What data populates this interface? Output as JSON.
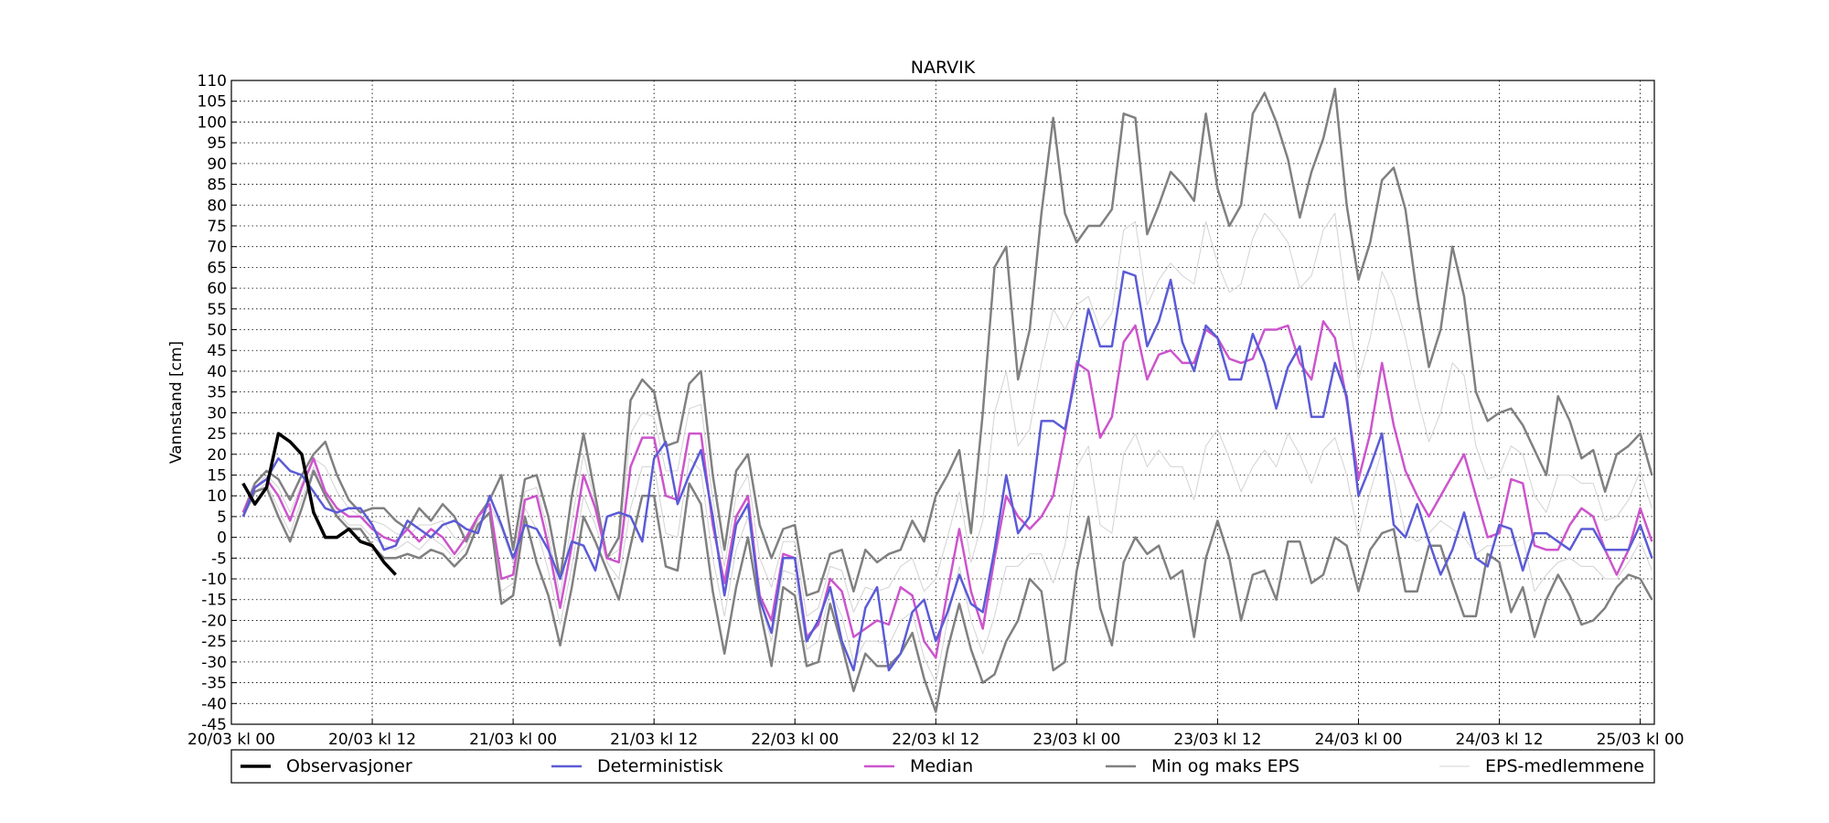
{
  "chart_data": {
    "type": "line",
    "title": "NARVIK",
    "y_label": "Vannstand [cm]",
    "grid": true,
    "xlim": [
      0,
      121.2
    ],
    "ylim": [
      -45,
      110
    ],
    "xticks": [
      {
        "value": 0,
        "label": "20/03 kl 00"
      },
      {
        "value": 12,
        "label": "20/03 kl 12"
      },
      {
        "value": 24,
        "label": "21/03 kl 00"
      },
      {
        "value": 36,
        "label": "21/03 kl 12"
      },
      {
        "value": 48,
        "label": "22/03 kl 00"
      },
      {
        "value": 60,
        "label": "22/03 kl 12"
      },
      {
        "value": 72,
        "label": "23/03 kl 00"
      },
      {
        "value": 84,
        "label": "23/03 kl 12"
      },
      {
        "value": 96,
        "label": "24/03 kl 00"
      },
      {
        "value": 108,
        "label": "24/03 kl 12"
      },
      {
        "value": 120,
        "label": "25/03 kl 00"
      }
    ],
    "yticks": [
      -45,
      -40,
      -35,
      -30,
      -25,
      -20,
      -15,
      -10,
      -5,
      0,
      5,
      10,
      15,
      20,
      25,
      30,
      35,
      40,
      45,
      50,
      55,
      60,
      65,
      70,
      75,
      80,
      85,
      90,
      95,
      100,
      105,
      110
    ],
    "x": [
      1,
      2,
      3,
      4,
      5,
      6,
      7,
      8,
      9,
      10,
      11,
      12,
      13,
      14,
      15,
      16,
      17,
      18,
      19,
      20,
      21,
      22,
      23,
      24,
      25,
      26,
      27,
      28,
      29,
      30,
      31,
      32,
      33,
      34,
      35,
      36,
      37,
      38,
      39,
      40,
      41,
      42,
      43,
      44,
      45,
      46,
      47,
      48,
      49,
      50,
      51,
      52,
      53,
      54,
      55,
      56,
      57,
      58,
      59,
      60,
      61,
      62,
      63,
      64,
      65,
      66,
      67,
      68,
      69,
      70,
      71,
      72,
      73,
      74,
      75,
      76,
      77,
      78,
      79,
      80,
      81,
      82,
      83,
      84,
      85,
      86,
      87,
      88,
      89,
      90,
      91,
      92,
      93,
      94,
      95,
      96,
      97,
      98,
      99,
      100,
      101,
      102,
      103,
      104,
      105,
      106,
      107,
      108,
      109,
      110,
      111,
      112,
      113,
      114,
      115,
      116,
      117,
      118,
      119,
      120,
      121
    ],
    "series": [
      {
        "name": "Observasjoner",
        "color": "#000000",
        "x": [
          1,
          2,
          3,
          4,
          5,
          6,
          7,
          8,
          9,
          10,
          11,
          12,
          13,
          14
        ],
        "values": [
          13,
          8,
          12,
          25,
          23,
          20,
          6,
          0,
          0,
          2,
          -1,
          -2,
          -6,
          -9
        ]
      },
      {
        "name": "Deterministisk",
        "color": "#5b5bd6",
        "values": [
          5,
          12,
          14,
          19,
          16,
          15,
          11,
          7,
          6,
          7,
          7,
          3,
          -3,
          -2,
          4,
          2,
          0,
          3,
          4,
          2,
          1,
          10,
          3,
          -5,
          3,
          2,
          -3,
          -10,
          -1,
          -2,
          -8,
          5,
          6,
          5,
          -1,
          19,
          23,
          8,
          15,
          21,
          5,
          -14,
          3,
          8,
          -15,
          -23,
          -5,
          -5,
          -25,
          -20,
          -12,
          -25,
          -32,
          -17,
          -12,
          -32,
          -28,
          -18,
          -15,
          -25,
          -18,
          -9,
          -16,
          -18,
          -3,
          15,
          1,
          5,
          28,
          28,
          26,
          40,
          55,
          46,
          46,
          64,
          63,
          46,
          52,
          62,
          47,
          40,
          51,
          48,
          38,
          38,
          49,
          42,
          31,
          41,
          46,
          29,
          29,
          42,
          34,
          10,
          17,
          25,
          3,
          0,
          8,
          -1,
          -9,
          -3,
          6,
          -5,
          -7,
          3,
          2,
          -8,
          1,
          1,
          -1,
          -3,
          2,
          2,
          -3,
          -3,
          -3,
          3,
          -5
        ]
      },
      {
        "name": "Median",
        "color": "#cc55cc",
        "values": [
          6,
          12,
          14,
          10,
          4,
          12,
          19,
          11,
          7,
          5,
          5,
          2,
          0,
          -1,
          2,
          -1,
          2,
          0,
          -4,
          0,
          5,
          8,
          -10,
          -9,
          9,
          10,
          -2,
          -17,
          -2,
          15,
          7,
          -5,
          -6,
          17,
          24,
          24,
          10,
          9,
          25,
          25,
          3,
          -11,
          5,
          10,
          -14,
          -20,
          -4,
          -5,
          -24,
          -21,
          -10,
          -13,
          -24,
          -22,
          -20,
          -21,
          -12,
          -14,
          -25,
          -29,
          -13,
          2,
          -13,
          -22,
          -5,
          10,
          5,
          2,
          5,
          10,
          25,
          42,
          40,
          24,
          29,
          47,
          51,
          38,
          44,
          45,
          42,
          42,
          50,
          48,
          43,
          42,
          43,
          50,
          50,
          51,
          42,
          38,
          52,
          48,
          33,
          14,
          25,
          42,
          27,
          16,
          10,
          5,
          10,
          15,
          20,
          10,
          0,
          1,
          14,
          13,
          -2,
          -3,
          -3,
          3,
          7,
          5,
          -3,
          -9,
          -3,
          7,
          -1
        ]
      },
      {
        "name": "Min og maks EPS",
        "color": "#808080",
        "min": [
          5,
          11,
          12,
          5,
          -1,
          7,
          16,
          10,
          5,
          2,
          2,
          -2,
          -5,
          -5,
          -4,
          -5,
          -3,
          -4,
          -7,
          -4,
          3,
          6,
          -16,
          -14,
          5,
          -6,
          -14,
          -26,
          -12,
          5,
          -1,
          -8,
          -15,
          -2,
          10,
          10,
          -7,
          -8,
          13,
          8,
          -13,
          -28,
          -12,
          0,
          -17,
          -31,
          -12,
          -14,
          -31,
          -30,
          -16,
          -26,
          -37,
          -28,
          -31,
          -31,
          -28,
          -23,
          -34,
          -42,
          -27,
          -16,
          -27,
          -35,
          -33,
          -25,
          -20,
          -10,
          -13,
          -32,
          -30,
          -8,
          5,
          -17,
          -26,
          -6,
          0,
          -4,
          -2,
          -10,
          -8,
          -24,
          -5,
          4,
          -5,
          -20,
          -9,
          -8,
          -15,
          -1,
          -1,
          -11,
          -9,
          0,
          -2,
          -13,
          -3,
          1,
          2,
          -13,
          -13,
          -2,
          -2,
          -11,
          -19,
          -19,
          -4,
          -6,
          -18,
          -12,
          -24,
          -15,
          -9,
          -14,
          -21,
          -20,
          -17,
          -12,
          -9,
          -10,
          -15
        ],
        "max": [
          6,
          13,
          16,
          14,
          9,
          15,
          20,
          23,
          15,
          9,
          6,
          7,
          7,
          4,
          2,
          7,
          4,
          8,
          5,
          -1,
          5,
          9,
          15,
          -3,
          14,
          15,
          5,
          -10,
          10,
          25,
          10,
          -5,
          0,
          33,
          38,
          35,
          22,
          23,
          37,
          40,
          15,
          -3,
          16,
          20,
          3,
          -5,
          2,
          3,
          -14,
          -13,
          -4,
          -3,
          -13,
          -3,
          -6,
          -4,
          -3,
          4,
          -1,
          10,
          15,
          21,
          1,
          30,
          65,
          70,
          38,
          50,
          78,
          101,
          78,
          71,
          75,
          75,
          79,
          102,
          101,
          73,
          80,
          88,
          85,
          81,
          102,
          84,
          75,
          80,
          102,
          107,
          100,
          91,
          77,
          88,
          96,
          108,
          80,
          62,
          71,
          86,
          89,
          79,
          58,
          41,
          50,
          70,
          58,
          35,
          28,
          30,
          31,
          27,
          21,
          15,
          34,
          28,
          19,
          21,
          11,
          20,
          22,
          25,
          15
        ]
      },
      {
        "name": "EPS-medlemmene",
        "color": "#d3d3d3",
        "members": [
          [
            6,
            12,
            15,
            12,
            6,
            13,
            19,
            17,
            11,
            7,
            5,
            4,
            3,
            1,
            0,
            3,
            3,
            4,
            0,
            -1,
            5,
            8,
            2,
            -6,
            11,
            12,
            1,
            -14,
            4,
            20,
            8,
            -5,
            -3,
            25,
            30,
            29,
            16,
            16,
            31,
            32,
            9,
            -7,
            10,
            15,
            -5,
            -12,
            -1,
            -1,
            -19,
            -17,
            -7,
            -8,
            -18,
            -12,
            -13,
            -12,
            -7,
            -5,
            -13,
            -10,
            0,
            11,
            -6,
            4,
            30,
            40,
            22,
            26,
            42,
            55,
            50,
            56,
            58,
            50,
            54,
            74,
            76,
            56,
            62,
            66,
            63,
            61,
            76,
            66,
            59,
            61,
            72,
            78,
            75,
            71,
            60,
            63,
            74,
            78,
            56,
            38,
            48,
            64,
            58,
            48,
            34,
            23,
            30,
            42,
            39,
            22,
            14,
            15,
            22,
            20,
            10,
            6,
            15,
            15,
            13,
            13,
            4,
            5,
            9,
            16,
            7
          ],
          [
            5,
            11,
            13,
            7,
            1,
            9,
            17,
            10,
            6,
            3,
            3,
            0,
            -2,
            -3,
            -1,
            -3,
            0,
            -2,
            -5,
            -2,
            4,
            7,
            -13,
            -11,
            7,
            2,
            -8,
            -21,
            -7,
            10,
            3,
            -6,
            -10,
            7,
            17,
            17,
            1,
            0,
            19,
            16,
            -5,
            -19,
            -3,
            5,
            -15,
            -25,
            -8,
            -9,
            -27,
            -25,
            -13,
            -19,
            -30,
            -25,
            -25,
            -26,
            -20,
            -18,
            -29,
            -35,
            -20,
            -7,
            -20,
            -28,
            -19,
            -7,
            -7,
            -4,
            -4,
            -11,
            -2,
            17,
            22,
            3,
            1,
            20,
            25,
            17,
            21,
            17,
            17,
            9,
            22,
            26,
            19,
            11,
            17,
            21,
            17,
            25,
            20,
            13,
            21,
            24,
            15,
            0,
            11,
            21,
            14,
            1,
            -1,
            1,
            4,
            2,
            0,
            -4,
            -2,
            -2,
            -2,
            0,
            -13,
            -9,
            -6,
            -5,
            -7,
            -7,
            -10,
            -10,
            -6,
            -1,
            -8
          ]
        ]
      }
    ]
  }
}
